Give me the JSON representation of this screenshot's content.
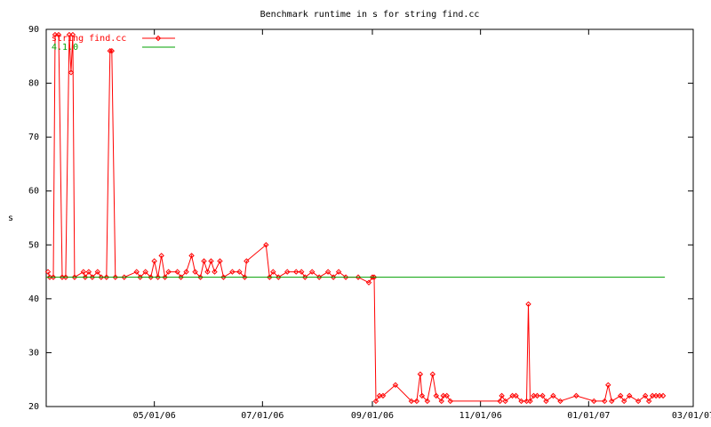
{
  "chart_data": {
    "type": "line",
    "title": "Benchmark runtime in s for string find.cc",
    "ylabel": "s",
    "xlim": [
      "2006-03-01",
      "2007-03-01"
    ],
    "xticks": [
      {
        "value": "2006-05-01",
        "label": "05/01/06"
      },
      {
        "value": "2006-07-01",
        "label": "07/01/06"
      },
      {
        "value": "2006-09-01",
        "label": "09/01/06"
      },
      {
        "value": "2006-11-01",
        "label": "11/01/06"
      },
      {
        "value": "2007-01-01",
        "label": "01/01/07"
      },
      {
        "value": "2007-03-01",
        "label": "03/01/07"
      }
    ],
    "ylim": [
      20,
      90
    ],
    "yticks": [
      20,
      30,
      40,
      50,
      60,
      70,
      80,
      90
    ],
    "legend": "top-left",
    "series": [
      {
        "name": "string find.cc",
        "color": "#ff0000",
        "markers": true,
        "x": [
          "2006-03-02",
          "2006-03-03",
          "2006-03-05",
          "2006-03-06",
          "2006-03-08",
          "2006-03-10",
          "2006-03-12",
          "2006-03-14",
          "2006-03-15",
          "2006-03-16",
          "2006-03-17",
          "2006-03-22",
          "2006-03-23",
          "2006-03-25",
          "2006-03-27",
          "2006-03-30",
          "2006-04-01",
          "2006-04-04",
          "2006-04-06",
          "2006-04-07",
          "2006-04-09",
          "2006-04-14",
          "2006-04-21",
          "2006-04-23",
          "2006-04-26",
          "2006-04-29",
          "2006-05-01",
          "2006-05-03",
          "2006-05-05",
          "2006-05-07",
          "2006-05-09",
          "2006-05-14",
          "2006-05-16",
          "2006-05-19",
          "2006-05-22",
          "2006-05-24",
          "2006-05-27",
          "2006-05-29",
          "2006-05-31",
          "2006-06-02",
          "2006-06-04",
          "2006-06-07",
          "2006-06-09",
          "2006-06-14",
          "2006-06-18",
          "2006-06-21",
          "2006-06-22",
          "2006-07-03",
          "2006-07-05",
          "2006-07-07",
          "2006-07-10",
          "2006-07-15",
          "2006-07-20",
          "2006-07-23",
          "2006-07-25",
          "2006-07-29",
          "2006-08-02",
          "2006-08-07",
          "2006-08-10",
          "2006-08-13",
          "2006-08-17",
          "2006-08-24",
          "2006-08-30",
          "2006-09-01",
          "2006-09-02",
          "2006-09-03",
          "2006-09-05",
          "2006-09-07",
          "2006-09-14",
          "2006-09-23",
          "2006-09-26",
          "2006-09-28",
          "2006-09-29",
          "2006-10-02",
          "2006-10-05",
          "2006-10-07",
          "2006-10-10",
          "2006-10-11",
          "2006-10-13",
          "2006-10-15",
          "2006-11-12",
          "2006-11-13",
          "2006-11-15",
          "2006-11-19",
          "2006-11-21",
          "2006-11-24",
          "2006-11-27",
          "2006-11-28",
          "2006-11-29",
          "2006-12-01",
          "2006-12-03",
          "2006-12-06",
          "2006-12-08",
          "2006-12-12",
          "2006-12-16",
          "2006-12-25",
          "2007-01-04",
          "2007-01-10",
          "2007-01-12",
          "2007-01-14",
          "2007-01-19",
          "2007-01-21",
          "2007-01-24",
          "2007-01-29",
          "2007-02-02",
          "2007-02-04",
          "2007-02-06",
          "2007-02-08",
          "2007-02-10",
          "2007-02-12"
        ],
        "values": [
          45,
          44,
          44,
          89,
          89,
          44,
          44,
          89,
          82,
          89,
          44,
          45,
          44,
          45,
          44,
          45,
          44,
          44,
          86,
          86,
          44,
          44,
          45,
          44,
          45,
          44,
          47,
          44,
          48,
          44,
          45,
          45,
          44,
          45,
          48,
          45,
          44,
          47,
          45,
          47,
          45,
          47,
          44,
          45,
          45,
          44,
          47,
          50,
          44,
          45,
          44,
          45,
          45,
          45,
          44,
          45,
          44,
          45,
          44,
          45,
          44,
          44,
          43,
          44,
          44,
          21,
          22,
          22,
          24,
          21,
          21,
          26,
          22,
          21,
          26,
          22,
          21,
          22,
          22,
          21,
          21,
          22,
          21,
          22,
          22,
          21,
          21,
          39,
          21,
          22,
          22,
          22,
          21,
          22,
          21,
          22,
          21,
          21,
          24,
          21,
          22,
          21,
          22,
          21,
          22,
          21,
          22,
          22,
          22,
          22
        ]
      },
      {
        "name": "4.1.0",
        "color": "#00a000",
        "markers": false,
        "x": [
          "2006-03-01",
          "2007-02-13"
        ],
        "values": [
          44,
          44
        ]
      }
    ]
  }
}
